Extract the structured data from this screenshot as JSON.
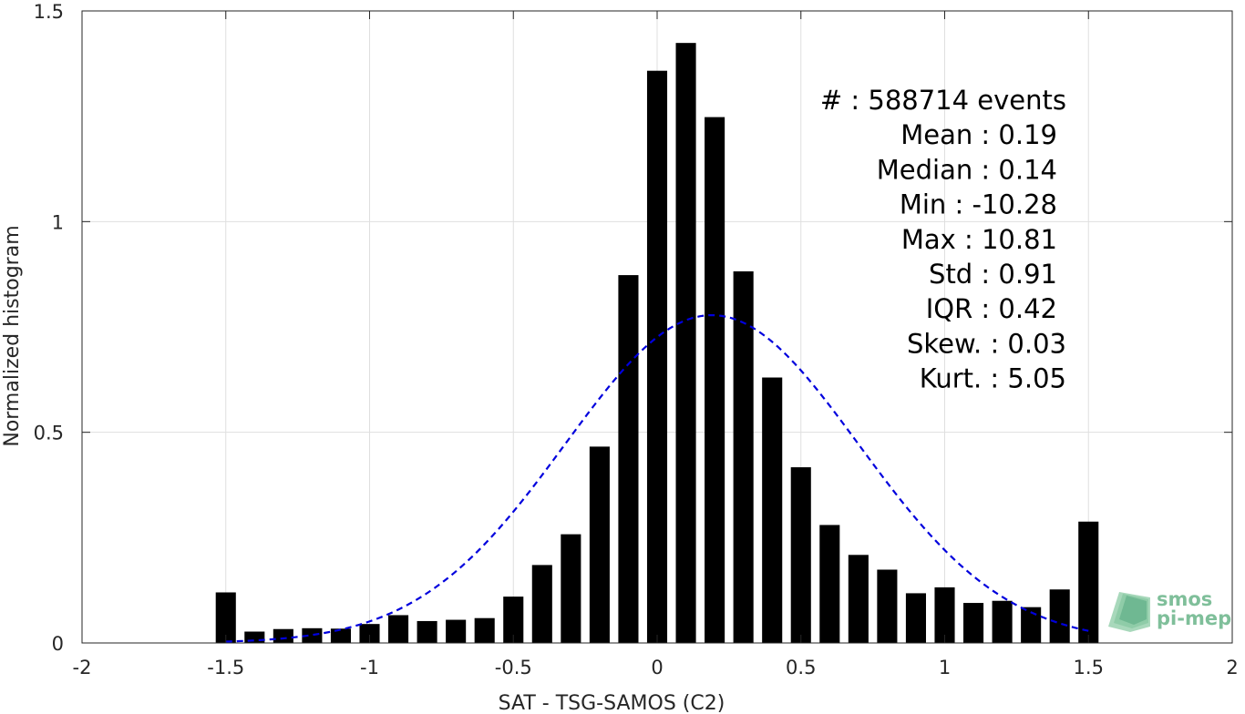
{
  "chart_data": {
    "type": "bar",
    "xlabel": "SAT - TSG-SAMOS (C2)",
    "ylabel": "Normalized histogram",
    "xlim": [
      -2,
      2
    ],
    "ylim": [
      0,
      1.5
    ],
    "xticks": [
      -2,
      -1.5,
      -1,
      -0.5,
      0,
      0.5,
      1,
      1.5,
      2
    ],
    "xtick_labels": [
      "-2",
      "-1.5",
      "-1",
      "-0.5",
      "0",
      "0.5",
      "1",
      "1.5",
      "2"
    ],
    "yticks": [
      0,
      0.5,
      1,
      1.5
    ],
    "ytick_labels": [
      "0",
      "0.5",
      "1",
      "1.5"
    ],
    "grid": true,
    "bar_color": "#000000",
    "bar_width": 0.07,
    "bars": {
      "x": [
        -1.5,
        -1.4,
        -1.3,
        -1.2,
        -1.1,
        -1.0,
        -0.9,
        -0.8,
        -0.7,
        -0.6,
        -0.5,
        -0.4,
        -0.3,
        -0.2,
        -0.1,
        0.0,
        0.1,
        0.2,
        0.3,
        0.4,
        0.5,
        0.6,
        0.7,
        0.8,
        0.9,
        1.0,
        1.1,
        1.2,
        1.3,
        1.4,
        1.5
      ],
      "values": [
        0.12,
        0.027,
        0.033,
        0.035,
        0.034,
        0.045,
        0.066,
        0.052,
        0.055,
        0.059,
        0.11,
        0.185,
        0.258,
        0.466,
        0.873,
        1.358,
        1.424,
        1.248,
        0.882,
        0.63,
        0.417,
        0.28,
        0.209,
        0.174,
        0.118,
        0.132,
        0.095,
        0.1,
        0.085,
        0.127,
        0.288
      ]
    },
    "fit_curve": {
      "type": "normal",
      "mean": 0.19,
      "std": 0.51,
      "peak": 0.778,
      "x_range": [
        -1.5,
        1.5
      ],
      "color": "#0000dd",
      "style": "dashed"
    },
    "annotations": [
      "#  : 588714 events",
      "Mean : 0.19",
      "Median : 0.14",
      "Min : -10.28",
      "Max : 10.81",
      "Std : 0.91",
      "IQR : 0.42",
      "Skew. : 0.03",
      "Kurt. : 5.05"
    ],
    "logo": {
      "line1": "smos",
      "line2": "pi-mep",
      "color": "#7fbf9a"
    }
  }
}
